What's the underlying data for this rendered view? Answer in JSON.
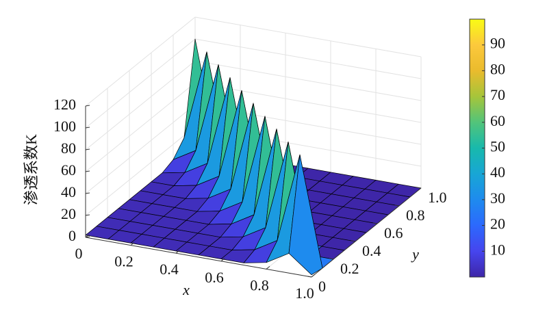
{
  "chart_data": {
    "type": "surface",
    "x_label": "x",
    "y_label": "y",
    "z_label": "渗透系数K",
    "x": [
      0,
      0.1,
      0.2,
      0.3,
      0.4,
      0.5,
      0.6,
      0.7,
      0.8,
      0.9,
      1
    ],
    "y": [
      0,
      0.1,
      0.2,
      0.3,
      0.4,
      0.5,
      0.6,
      0.7,
      0.8,
      0.9,
      1
    ],
    "z": [
      [
        2,
        2,
        2,
        2,
        2,
        2,
        2,
        2,
        6,
        18,
        2
      ],
      [
        2,
        2,
        2,
        2,
        2,
        2,
        2,
        6,
        18,
        100,
        0
      ],
      [
        2,
        2,
        2,
        2,
        2,
        2,
        6,
        18,
        100,
        0,
        0
      ],
      [
        2,
        2,
        2,
        2,
        2,
        6,
        18,
        100,
        0,
        0,
        0
      ],
      [
        2,
        2,
        2,
        2,
        6,
        18,
        100,
        0,
        0,
        0,
        0
      ],
      [
        2,
        2,
        2,
        6,
        18,
        100,
        0,
        0,
        0,
        0,
        0
      ],
      [
        2,
        2,
        6,
        18,
        100,
        0,
        0,
        0,
        0,
        0,
        0
      ],
      [
        2,
        6,
        18,
        100,
        0,
        0,
        0,
        0,
        0,
        0,
        0
      ],
      [
        6,
        18,
        100,
        0,
        0,
        0,
        0,
        0,
        0,
        0,
        0
      ],
      [
        18,
        100,
        0,
        0,
        0,
        0,
        0,
        0,
        0,
        0,
        0
      ],
      [
        100,
        0,
        0,
        0,
        0,
        0,
        0,
        0,
        0,
        0,
        0
      ]
    ],
    "xlim": [
      0,
      1
    ],
    "ylim": [
      0,
      1
    ],
    "zlim": [
      0,
      120
    ],
    "xticks": [
      0,
      0.2,
      0.4,
      0.6,
      0.8,
      {
        "value": 1,
        "label": "1.0"
      }
    ],
    "yticks": [
      0,
      0.2,
      0.4,
      0.6,
      0.8,
      {
        "value": 1,
        "label": "1.0"
      }
    ],
    "zticks": [
      0,
      20,
      40,
      60,
      80,
      100,
      120
    ],
    "colormap": "parula",
    "clim": [
      0,
      100
    ],
    "colorbar_ticks": [
      10,
      20,
      30,
      40,
      50,
      60,
      70,
      80,
      90
    ],
    "grid": true
  }
}
